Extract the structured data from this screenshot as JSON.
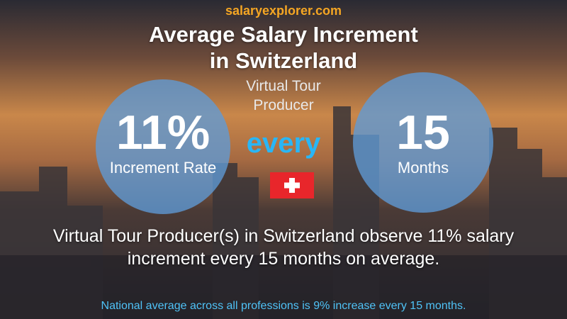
{
  "brand": {
    "part1": "salary",
    "part2": "explorer.com"
  },
  "title": [
    "Average Salary Increment",
    "in Switzerland"
  ],
  "subtitle": [
    "Virtual Tour",
    "Producer"
  ],
  "left_circle": {
    "value": "11%",
    "label": "Increment Rate"
  },
  "connector": "every",
  "right_circle": {
    "value": "15",
    "label": "Months"
  },
  "description": [
    "Virtual Tour Producer(s) in Switzerland observe 11% salary",
    "increment every 15 months on average."
  ],
  "footer": "National average across all professions is 9% increase every 15 months."
}
